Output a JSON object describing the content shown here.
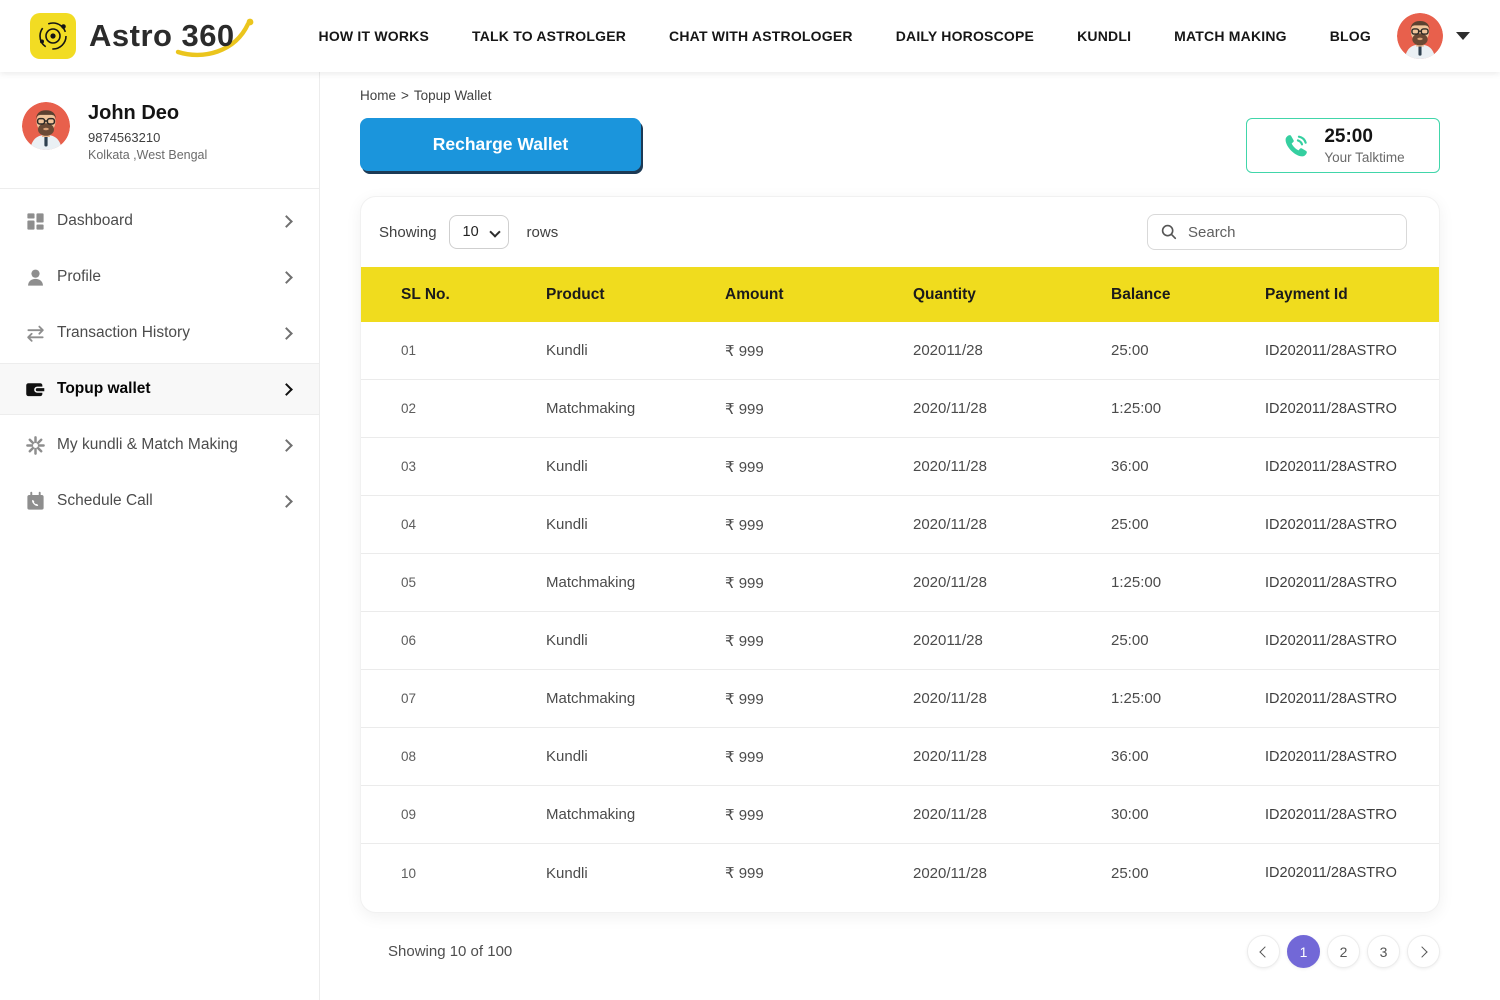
{
  "colors": {
    "accent_yellow": "#F0DC1E",
    "accent_blue": "#1B95DC",
    "accent_teal": "#41D6AA",
    "accent_purple": "#7268D7",
    "avatar_bg": "#E8604C"
  },
  "header": {
    "brand": {
      "name_primary": "Astro",
      "name_secondary": "360"
    },
    "nav_items": [
      "HOW IT WORKS",
      "TALK TO ASTROLGER",
      "CHAT WITH ASTROLOGER",
      "DAILY HOROSCOPE",
      "KUNDLI",
      "MATCH MAKING",
      "BLOG"
    ]
  },
  "sidebar": {
    "user": {
      "name": "John Deo",
      "phone": "9874563210",
      "location": "Kolkata ,West Bengal"
    },
    "menu": [
      {
        "label": "Dashboard",
        "icon": "dashboard-icon",
        "active": false
      },
      {
        "label": "Profile",
        "icon": "profile-icon",
        "active": false
      },
      {
        "label": "Transaction History",
        "icon": "transaction-history-icon",
        "active": false
      },
      {
        "label": "Topup wallet",
        "icon": "wallet-icon",
        "active": true
      },
      {
        "label": "My kundli & Match Making",
        "icon": "kundli-match-icon",
        "active": false
      },
      {
        "label": "Schedule Call",
        "icon": "schedule-call-icon",
        "active": false
      }
    ]
  },
  "main": {
    "breadcrumb": {
      "items": [
        "Home",
        "Topup Wallet"
      ],
      "separator": ">"
    },
    "recharge_button": "Recharge Wallet",
    "talktime": {
      "value": "25:00",
      "label": "Your Talktime"
    },
    "table_controls": {
      "showing_label": "Showing",
      "rows_per_page": "10",
      "rows_label": "rows",
      "search_placeholder": "Search"
    },
    "table": {
      "columns": [
        "SL No.",
        "Product",
        "Amount",
        "Quantity",
        "Balance",
        "Payment Id"
      ],
      "rows": [
        {
          "sl": "01",
          "product": "Kundli",
          "amount": "₹ 999",
          "quantity": "202011/28",
          "balance": "25:00",
          "payment_id": "ID202011/28ASTRO"
        },
        {
          "sl": "02",
          "product": "Matchmaking",
          "amount": "₹ 999",
          "quantity": "2020/11/28",
          "balance": "1:25:00",
          "payment_id": "ID202011/28ASTRO"
        },
        {
          "sl": "03",
          "product": "Kundli",
          "amount": "₹ 999",
          "quantity": "2020/11/28",
          "balance": "36:00",
          "payment_id": "ID202011/28ASTRO"
        },
        {
          "sl": "04",
          "product": "Kundli",
          "amount": "₹ 999",
          "quantity": "2020/11/28",
          "balance": "25:00",
          "payment_id": "ID202011/28ASTRO"
        },
        {
          "sl": "05",
          "product": "Matchmaking",
          "amount": "₹ 999",
          "quantity": "2020/11/28",
          "balance": "1:25:00",
          "payment_id": "ID202011/28ASTRO"
        },
        {
          "sl": "06",
          "product": "Kundli",
          "amount": "₹ 999",
          "quantity": "202011/28",
          "balance": "25:00",
          "payment_id": "ID202011/28ASTRO"
        },
        {
          "sl": "07",
          "product": "Matchmaking",
          "amount": "₹ 999",
          "quantity": "2020/11/28",
          "balance": "1:25:00",
          "payment_id": "ID202011/28ASTRO"
        },
        {
          "sl": "08",
          "product": "Kundli",
          "amount": "₹ 999",
          "quantity": "2020/11/28",
          "balance": "36:00",
          "payment_id": "ID202011/28ASTRO"
        },
        {
          "sl": "09",
          "product": "Matchmaking",
          "amount": "₹ 999",
          "quantity": "2020/11/28",
          "balance": "30:00",
          "payment_id": "ID202011/28ASTRO"
        },
        {
          "sl": "10",
          "product": "Kundli",
          "amount": "₹ 999",
          "quantity": "2020/11/28",
          "balance": "25:00",
          "payment_id": "ID202011/28ASTRO"
        }
      ]
    },
    "footer": {
      "summary": "Showing 10 of 100",
      "pages": [
        "1",
        "2",
        "3"
      ],
      "active_page": "1"
    }
  }
}
